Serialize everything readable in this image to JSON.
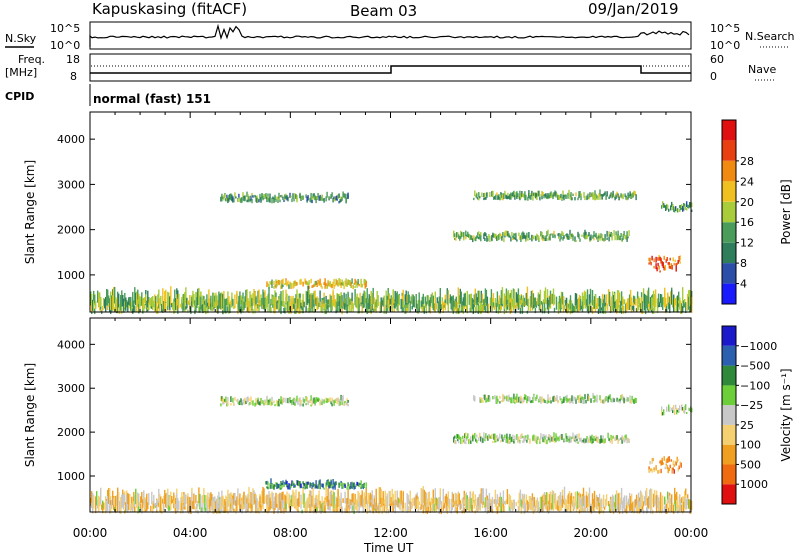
{
  "header": {
    "station": "Kapuskasing (fitACF)",
    "beam": "Beam 03",
    "date": "09/Jan/2019"
  },
  "aux_panel": {
    "nsky_label": "N.Sky",
    "nsearch_label": "N.Search",
    "left_ticks_top": [
      "10^5",
      "10^0"
    ],
    "right_ticks_top": [
      "10^5",
      "10^0"
    ],
    "freq_label": "Freq.",
    "freq_unit": "[MHz]",
    "nave_label": "Nave",
    "left_ticks_freq": [
      "18",
      "8"
    ],
    "right_ticks_freq": [
      "60",
      "0"
    ],
    "cpid_label": "CPID",
    "cpid_value": "normal (fast) 151"
  },
  "chart_data": [
    {
      "type": "heatmap",
      "title": "",
      "xlabel": "Time UT",
      "ylabel": "Slant Range [km]",
      "x_ticks": [
        "00:00",
        "04:00",
        "08:00",
        "12:00",
        "16:00",
        "20:00",
        "00:00"
      ],
      "x_range_hours": [
        0,
        24
      ],
      "y_range_km": [
        180,
        4600
      ],
      "y_ticks": [
        1000,
        2000,
        3000,
        4000
      ],
      "colorbar": {
        "label": "Power [dB]",
        "ticks": [
          "4",
          "8",
          "12",
          "16",
          "20",
          "24",
          "28"
        ],
        "colors": [
          "#1a1aff",
          "#2b4fa8",
          "#2e7d5b",
          "#4a9c5a",
          "#a8cc3a",
          "#f0c020",
          "#f08a10",
          "#e84010",
          "#e01010"
        ]
      },
      "regions": [
        {
          "t0": 5.2,
          "t1": 10.3,
          "r": 2650,
          "w": 140,
          "level": 0.35
        },
        {
          "t0": 7.0,
          "t1": 11.0,
          "r": 750,
          "w": 130,
          "level": 0.6
        },
        {
          "t0": 15.3,
          "t1": 21.8,
          "r": 2700,
          "w": 120,
          "level": 0.4
        },
        {
          "t0": 14.5,
          "t1": 21.5,
          "r": 1800,
          "w": 150,
          "level": 0.4
        },
        {
          "t0": 22.3,
          "t1": 23.6,
          "r": 1200,
          "w": 300,
          "level": 0.8
        },
        {
          "t0": 22.8,
          "t1": 24.0,
          "r": 2450,
          "w": 150,
          "level": 0.35
        },
        {
          "t0": 0.0,
          "t1": 24.0,
          "r": 260,
          "w": 160,
          "level": 0.45
        }
      ]
    },
    {
      "type": "heatmap",
      "title": "",
      "xlabel": "Time UT",
      "ylabel": "Slant Range [km]",
      "x_ticks": [
        "00:00",
        "04:00",
        "08:00",
        "12:00",
        "16:00",
        "20:00",
        "00:00"
      ],
      "x_range_hours": [
        0,
        24
      ],
      "y_range_km": [
        180,
        4600
      ],
      "y_ticks": [
        1000,
        2000,
        3000,
        4000
      ],
      "colorbar": {
        "label": "Velocity [m s⁻¹]",
        "ticks": [
          "1000",
          "500",
          "100",
          "25",
          "−25",
          "−100",
          "−500",
          "−1000"
        ],
        "colors": [
          "#1a1acc",
          "#2b5fb0",
          "#2e8a3a",
          "#6ccf3a",
          "#c8c8c8",
          "#f5d070",
          "#f0a020",
          "#f06a10",
          "#e01010"
        ]
      },
      "regions": [
        {
          "t0": 5.2,
          "t1": 10.3,
          "r": 2650,
          "w": 140,
          "level": 0.45
        },
        {
          "t0": 7.0,
          "t1": 11.0,
          "r": 750,
          "w": 130,
          "level": 0.25
        },
        {
          "t0": 15.3,
          "t1": 21.8,
          "r": 2700,
          "w": 120,
          "level": 0.45
        },
        {
          "t0": 14.5,
          "t1": 21.5,
          "r": 1800,
          "w": 150,
          "level": 0.45
        },
        {
          "t0": 22.3,
          "t1": 23.6,
          "r": 1200,
          "w": 300,
          "level": 0.72
        },
        {
          "t0": 22.8,
          "t1": 24.0,
          "r": 2450,
          "w": 150,
          "level": 0.45
        },
        {
          "t0": 0.0,
          "t1": 24.0,
          "r": 260,
          "w": 160,
          "level": 0.6
        }
      ]
    }
  ]
}
